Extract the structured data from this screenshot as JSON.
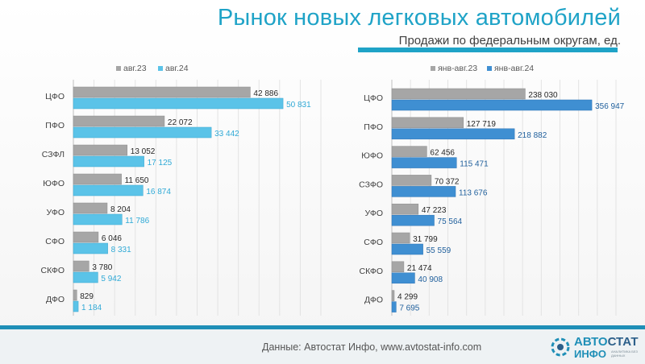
{
  "page": {
    "title": "Рынок новых легковых автомобилей",
    "subtitle": "Продажи по федеральным округам, ед.",
    "footer": "Данные: Автостат Инфо, www.avtostat-info.com"
  },
  "logo": {
    "part1": "АВТО",
    "part2": "СТАТ",
    "part3": "ИНФО",
    "tagline": "АНАЛИТИКА БЕЗ ДАННЫХ"
  },
  "colors": {
    "title": "#1fa3c7",
    "prev": "#a6a6a6",
    "cur_left": "#5bc3e8",
    "cur_right": "#3f8fd2",
    "label_left": "#2fa9d6",
    "label_right": "#1f5f9c"
  },
  "chart_data": [
    {
      "type": "bar",
      "orientation": "horizontal",
      "categories": [
        "ЦФО",
        "ПФО",
        "СЗФЛ",
        "ЮФО",
        "УФО",
        "СФО",
        "СКФО",
        "ДФО"
      ],
      "series": [
        {
          "name": "авг.23",
          "values": [
            42886,
            22072,
            13052,
            11650,
            8204,
            6046,
            3780,
            829
          ],
          "labels": [
            "42 886",
            "22 072",
            "13 052",
            "11 650",
            "8 204",
            "6 046",
            "3 780",
            "829"
          ]
        },
        {
          "name": "авг.24",
          "values": [
            50831,
            33442,
            17125,
            16874,
            11786,
            8331,
            5942,
            1184
          ],
          "labels": [
            "50 831",
            "33 442",
            "17 125",
            "16 874",
            "11 786",
            "8 331",
            "5 942",
            "1 184"
          ]
        }
      ],
      "xlim": [
        0,
        60000
      ],
      "grid": true,
      "legend": "top-left"
    },
    {
      "type": "bar",
      "orientation": "horizontal",
      "categories": [
        "ЦФО",
        "ПФО",
        "ЮФО",
        "СЗФО",
        "УФО",
        "СФО",
        "СКФО",
        "ДФО"
      ],
      "series": [
        {
          "name": "янв-авг.23",
          "values": [
            238030,
            127719,
            62456,
            70372,
            47223,
            31799,
            21474,
            4299
          ],
          "labels": [
            "238 030",
            "127 719",
            "62 456",
            "70 372",
            "47 223",
            "31 799",
            "21 474",
            "4 299"
          ]
        },
        {
          "name": "янв-авг.24",
          "values": [
            356947,
            218882,
            115471,
            113676,
            75564,
            55559,
            40908,
            7695
          ],
          "labels": [
            "356 947",
            "218 882",
            "115 471",
            "113 676",
            "75 564",
            "55 559",
            "40 908",
            "7 695"
          ]
        }
      ],
      "xlim": [
        0,
        400000
      ],
      "grid": true,
      "legend": "top-left"
    }
  ]
}
